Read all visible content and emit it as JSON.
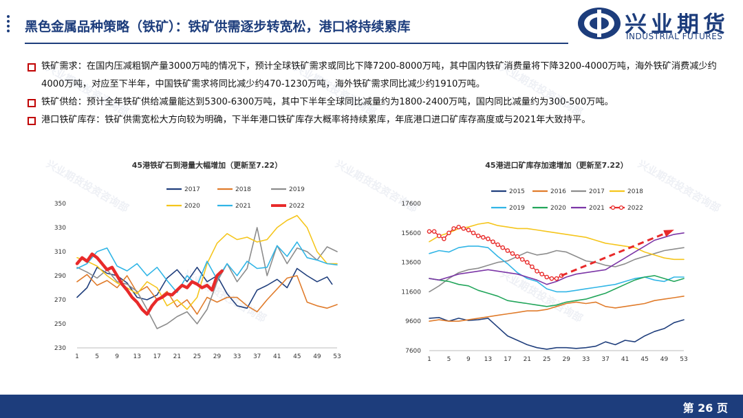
{
  "header": {
    "title": "黑色金属品种策略（铁矿）：铁矿供需逐步转宽松，港口将持续累库",
    "logo_cn": "兴业期货",
    "logo_en": "INDUSTRIAL FUTURES"
  },
  "bullets": [
    {
      "text": "铁矿需求：在国内压减粗钢产量3000万吨的情况下，预计全球铁矿需求或同比下降7200-8000万吨，其中国内铁矿消费量将下降3200-4000万吨，海外铁矿消费减少约4000万吨，对应至下半年，中国铁矿需求将同比减少约470-1230万吨，海外铁矿需求同比减少约1910万吨。"
    },
    {
      "text": "铁矿供给：预计全年铁矿供给减量能达到5300-6300万吨，其中下半年全球同比减量约为1800-2400万吨，国内同比减量约为300-500万吨。"
    },
    {
      "text": "港口铁矿库存：铁矿供需宽松大方向较为明确，下半年港口铁矿库存大概率将持续累库，年底港口进口矿库存高度或与2021年大致持平。"
    }
  ],
  "watermark_text": "兴业期货投资咨询部",
  "footer": {
    "page": "第 26 页"
  },
  "chart_data": [
    {
      "type": "line",
      "title": "45港铁矿石到港量大幅增加（更新至7.22）",
      "xticks": [
        "1",
        "5",
        "9",
        "13",
        "17",
        "21",
        "25",
        "29",
        "33",
        "37",
        "41",
        "45",
        "49",
        "53"
      ],
      "yticks": [
        "230",
        "250",
        "270",
        "290",
        "310",
        "330",
        "350"
      ],
      "ylim": [
        230,
        350
      ],
      "xlim": [
        1,
        53
      ],
      "legend_placement": "top",
      "series": [
        {
          "name": "2017",
          "color": "#1f3e7c",
          "width": 1.6,
          "x": [
            1,
            3,
            5,
            7,
            9,
            11,
            13,
            15,
            17,
            19,
            21,
            23,
            25,
            27,
            29,
            31,
            33,
            35,
            37,
            39,
            41,
            43,
            45,
            47,
            49,
            51,
            52
          ],
          "y": [
            272,
            280,
            297,
            292,
            290,
            284,
            272,
            270,
            274,
            288,
            295,
            285,
            297,
            285,
            290,
            275,
            265,
            263,
            278,
            282,
            287,
            280,
            296,
            290,
            285,
            289,
            283
          ]
        },
        {
          "name": "2018",
          "color": "#e07b2a",
          "width": 1.6,
          "x": [
            1,
            3,
            5,
            7,
            9,
            11,
            13,
            15,
            17,
            19,
            21,
            23,
            25,
            27,
            29,
            31,
            33,
            35,
            37,
            39,
            41,
            43,
            45,
            47,
            49,
            51,
            53
          ],
          "y": [
            285,
            291,
            282,
            286,
            280,
            290,
            276,
            281,
            270,
            277,
            264,
            270,
            258,
            272,
            268,
            272,
            272,
            265,
            260,
            270,
            279,
            288,
            290,
            268,
            265,
            263,
            266
          ]
        },
        {
          "name": "2019",
          "color": "#8c8c8c",
          "width": 1.6,
          "x": [
            1,
            3,
            5,
            7,
            9,
            11,
            13,
            15,
            17,
            19,
            21,
            23,
            25,
            27,
            29,
            31,
            33,
            35,
            37,
            39,
            41,
            43,
            45,
            47,
            49,
            51,
            53
          ],
          "y": [
            297,
            293,
            288,
            295,
            285,
            283,
            277,
            262,
            246,
            250,
            256,
            260,
            250,
            262,
            285,
            300,
            285,
            296,
            330,
            290,
            315,
            300,
            313,
            310,
            303,
            314,
            310
          ]
        },
        {
          "name": "2020",
          "color": "#f5c51b",
          "width": 1.6,
          "x": [
            1,
            3,
            5,
            7,
            9,
            11,
            13,
            15,
            17,
            19,
            21,
            23,
            25,
            27,
            29,
            31,
            33,
            35,
            37,
            39,
            41,
            43,
            45,
            47,
            49,
            51,
            53
          ],
          "y": [
            305,
            302,
            298,
            290,
            284,
            280,
            275,
            285,
            280,
            265,
            270,
            262,
            272,
            300,
            317,
            325,
            320,
            322,
            318,
            320,
            330,
            336,
            340,
            330,
            310,
            300,
            300
          ]
        },
        {
          "name": "2021",
          "color": "#30b5e6",
          "width": 1.6,
          "x": [
            1,
            3,
            5,
            7,
            9,
            11,
            13,
            15,
            17,
            19,
            21,
            23,
            25,
            27,
            29,
            31,
            33,
            35,
            37,
            39,
            41,
            43,
            45,
            47,
            49,
            51,
            53
          ],
          "y": [
            296,
            300,
            310,
            313,
            298,
            294,
            300,
            290,
            297,
            286,
            276,
            290,
            282,
            302,
            287,
            300,
            290,
            302,
            296,
            297,
            315,
            306,
            318,
            305,
            303,
            300,
            299
          ]
        },
        {
          "name": "2022",
          "color": "#e82a2a",
          "width": 4.5,
          "x": [
            1,
            2,
            3,
            4,
            5,
            6,
            7,
            8,
            9,
            10,
            11,
            12,
            13,
            14,
            15,
            16,
            17,
            18,
            19,
            20,
            21,
            22,
            23,
            24,
            25,
            26,
            27,
            28,
            29,
            30
          ],
          "y": [
            300,
            305,
            302,
            308,
            305,
            300,
            295,
            297,
            290,
            283,
            278,
            272,
            268,
            262,
            258,
            265,
            270,
            272,
            275,
            274,
            278,
            282,
            280,
            285,
            283,
            280,
            282,
            278,
            290,
            294
          ]
        }
      ]
    },
    {
      "type": "line",
      "title": "45港进口矿库存加速增加（更新至7.22）",
      "xticks": [
        "1",
        "5",
        "9",
        "13",
        "17",
        "21",
        "25",
        "29",
        "33",
        "37",
        "41",
        "45",
        "49",
        "53"
      ],
      "yticks": [
        "7600",
        "9600",
        "11600",
        "13600",
        "15600",
        "17600"
      ],
      "ylim": [
        7600,
        17600
      ],
      "xlim": [
        1,
        53
      ],
      "legend_placement": "top",
      "series": [
        {
          "name": "2015",
          "color": "#1f3e7c",
          "width": 1.6,
          "x": [
            1,
            3,
            5,
            7,
            9,
            11,
            13,
            15,
            17,
            19,
            21,
            23,
            25,
            27,
            29,
            31,
            33,
            35,
            37,
            39,
            41,
            43,
            45,
            47,
            49,
            51,
            53
          ],
          "y": [
            9800,
            9850,
            9600,
            9800,
            9650,
            9700,
            9800,
            9200,
            8600,
            8300,
            8000,
            7800,
            7700,
            7800,
            7800,
            7750,
            7800,
            7900,
            8200,
            8000,
            8300,
            8200,
            8600,
            8900,
            9100,
            9500,
            9700
          ]
        },
        {
          "name": "2016",
          "color": "#e07b2a",
          "width": 1.6,
          "x": [
            1,
            3,
            5,
            7,
            9,
            11,
            13,
            15,
            17,
            19,
            21,
            23,
            25,
            27,
            29,
            31,
            33,
            35,
            37,
            39,
            41,
            43,
            45,
            47,
            49,
            51,
            53
          ],
          "y": [
            9600,
            9700,
            9600,
            9600,
            9700,
            9800,
            9900,
            10000,
            10100,
            10200,
            10300,
            10300,
            10400,
            10600,
            10800,
            10900,
            10800,
            10900,
            10600,
            10500,
            10600,
            10700,
            10800,
            11000,
            11100,
            11200,
            11300
          ]
        },
        {
          "name": "2017",
          "color": "#8c8c8c",
          "width": 1.6,
          "x": [
            1,
            3,
            5,
            7,
            9,
            11,
            13,
            15,
            17,
            19,
            21,
            23,
            25,
            27,
            29,
            31,
            33,
            35,
            37,
            39,
            41,
            43,
            45,
            47,
            49,
            51,
            53
          ],
          "y": [
            11600,
            12000,
            12500,
            12900,
            13100,
            13200,
            13400,
            13600,
            13700,
            14000,
            14300,
            14100,
            14200,
            14400,
            14300,
            14000,
            13700,
            13600,
            13400,
            13300,
            13500,
            13800,
            14000,
            14200,
            14400,
            14500,
            14600
          ]
        },
        {
          "name": "2018",
          "color": "#f5c51b",
          "width": 1.6,
          "x": [
            1,
            3,
            5,
            7,
            9,
            11,
            13,
            15,
            17,
            19,
            21,
            23,
            25,
            27,
            29,
            31,
            33,
            35,
            37,
            39,
            41,
            43,
            45,
            47,
            49,
            51,
            53
          ],
          "y": [
            15000,
            15400,
            15600,
            15900,
            16000,
            16200,
            16300,
            16100,
            16000,
            15900,
            15900,
            15800,
            15700,
            15600,
            15500,
            15400,
            15300,
            15100,
            14900,
            14800,
            14700,
            14600,
            14300,
            14100,
            13900,
            13800,
            13800
          ]
        },
        {
          "name": "2019",
          "color": "#30b5e6",
          "width": 1.6,
          "x": [
            1,
            3,
            5,
            7,
            9,
            11,
            13,
            15,
            17,
            19,
            21,
            23,
            25,
            27,
            29,
            31,
            33,
            35,
            37,
            39,
            41,
            43,
            45,
            47,
            49,
            51,
            53
          ],
          "y": [
            14200,
            14400,
            14300,
            14600,
            14700,
            14700,
            14600,
            14000,
            13500,
            12900,
            12500,
            12300,
            11800,
            11600,
            11600,
            11700,
            11800,
            11900,
            12000,
            12100,
            12300,
            12500,
            12600,
            12400,
            12300,
            12600,
            12600
          ]
        },
        {
          "name": "2020",
          "color": "#21a55a",
          "width": 1.6,
          "x": [
            1,
            3,
            5,
            7,
            9,
            11,
            13,
            15,
            17,
            19,
            21,
            23,
            25,
            27,
            29,
            31,
            33,
            35,
            37,
            39,
            41,
            43,
            45,
            47,
            49,
            51,
            53
          ],
          "y": [
            12500,
            12400,
            12300,
            12100,
            12000,
            11700,
            11500,
            11300,
            11000,
            10900,
            10800,
            10700,
            10600,
            10700,
            10900,
            11000,
            11100,
            11300,
            11500,
            11800,
            12100,
            12400,
            12600,
            12700,
            12500,
            12300,
            12500
          ]
        },
        {
          "name": "2021",
          "color": "#7b35a6",
          "width": 1.6,
          "x": [
            1,
            3,
            5,
            7,
            9,
            11,
            13,
            15,
            17,
            19,
            21,
            23,
            25,
            27,
            29,
            31,
            33,
            35,
            37,
            39,
            41,
            43,
            45,
            47,
            49,
            51,
            53
          ],
          "y": [
            12500,
            12400,
            12600,
            12800,
            12900,
            13000,
            13100,
            13000,
            12900,
            12800,
            12600,
            12400,
            12100,
            12300,
            12600,
            12800,
            12900,
            13000,
            13100,
            13500,
            13900,
            14300,
            14700,
            15100,
            15300,
            15500,
            15600
          ]
        },
        {
          "name": "2022",
          "color": "#e82a2a",
          "width": 1.5,
          "dotted": true,
          "x": [
            1,
            2,
            3,
            4,
            5,
            6,
            7,
            8,
            9,
            10,
            11,
            12,
            13,
            14,
            15,
            16,
            17,
            18,
            19,
            20,
            21,
            22,
            23,
            24,
            25,
            26,
            27,
            28
          ],
          "y": [
            15700,
            15700,
            15400,
            15200,
            15600,
            15900,
            16000,
            15900,
            15800,
            15600,
            15400,
            15300,
            15200,
            15000,
            14800,
            14600,
            14400,
            14200,
            14000,
            13800,
            13600,
            13300,
            13000,
            12800,
            12600,
            12500,
            12500,
            12700
          ]
        }
      ]
    }
  ]
}
